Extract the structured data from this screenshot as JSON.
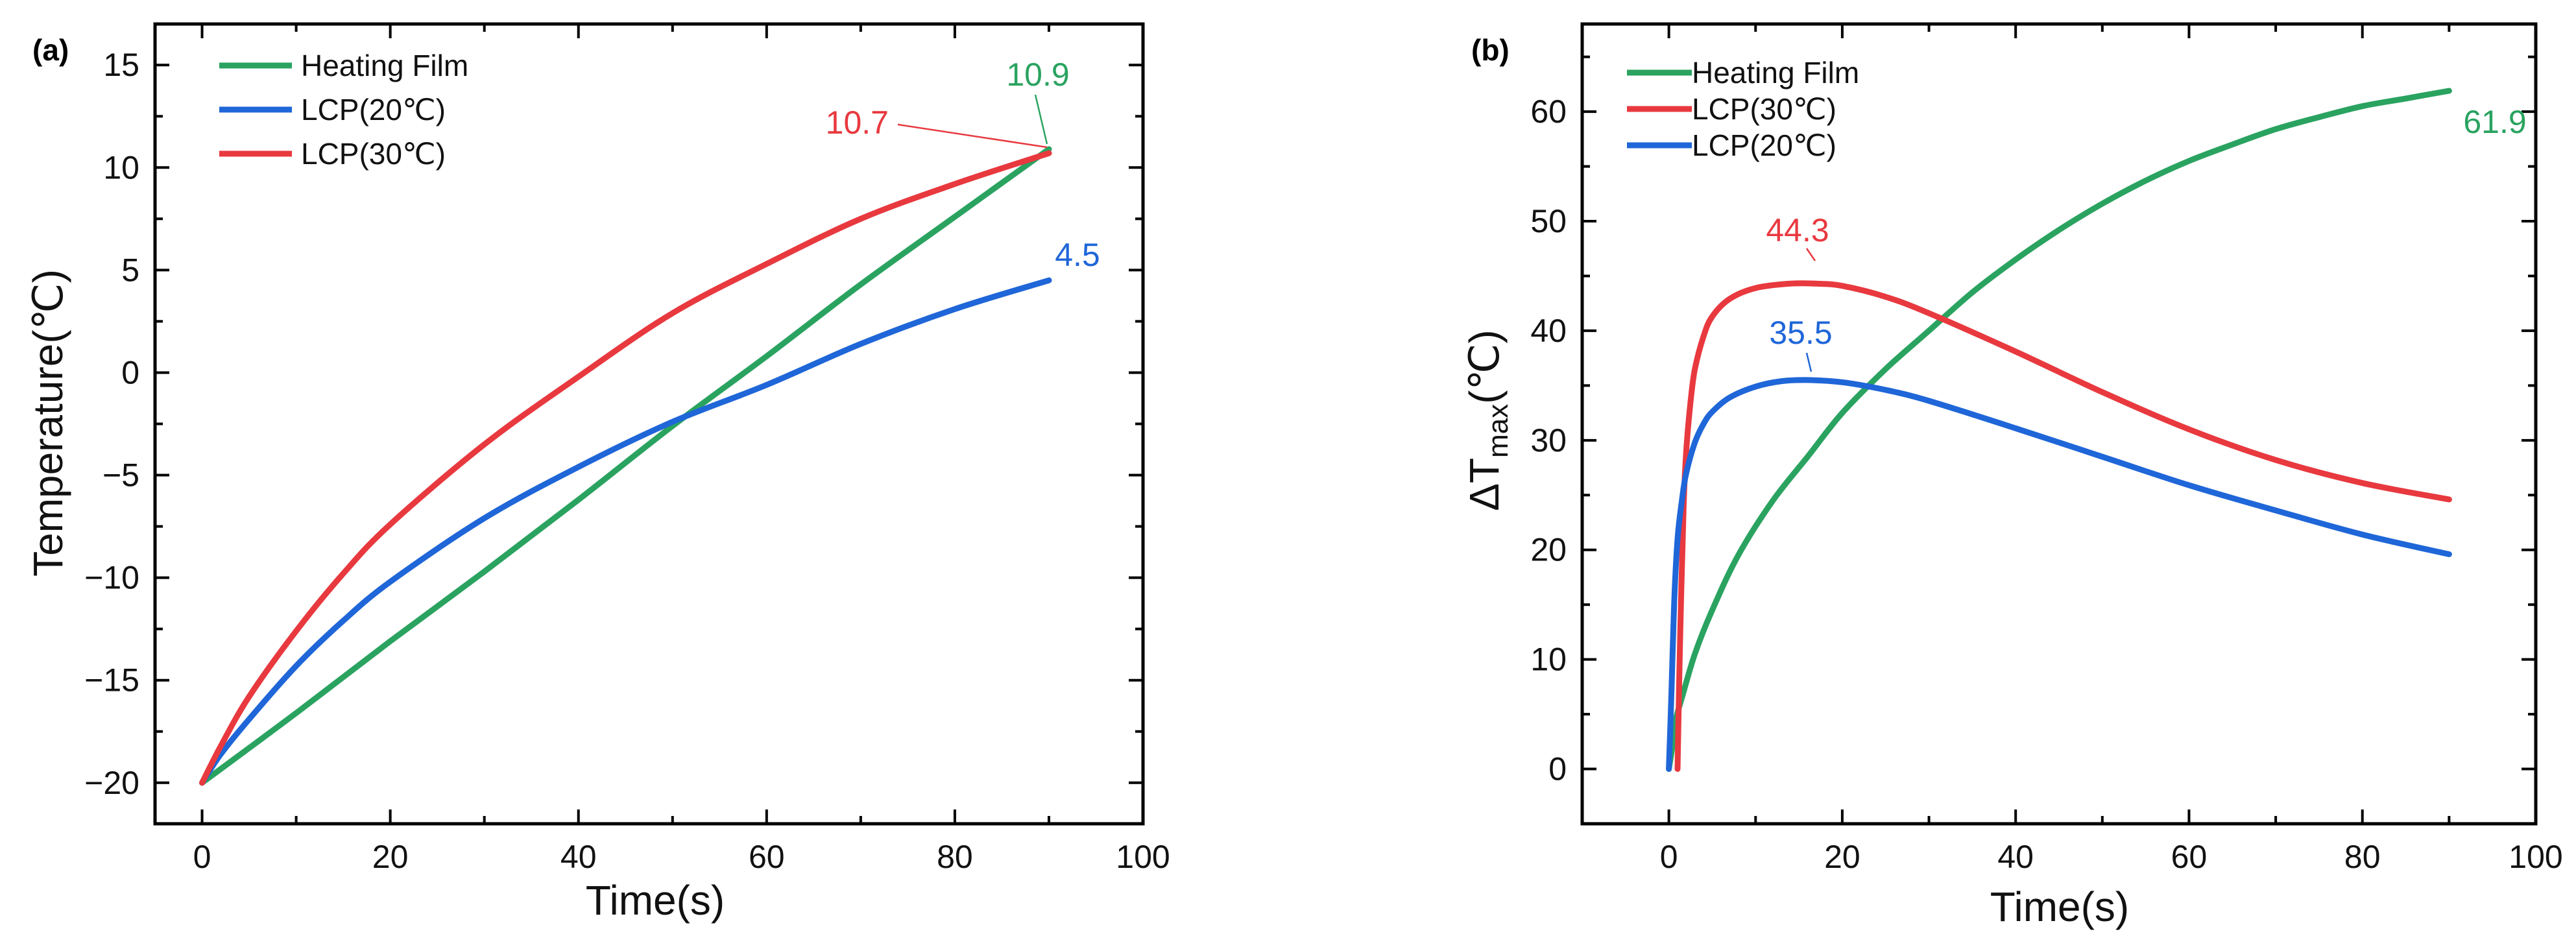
{
  "chart_data": [
    {
      "type": "line",
      "panel_label": "(a)",
      "xlabel": "Time(s)",
      "ylabel": "Temperature(℃)",
      "xlim": [
        -5,
        100
      ],
      "ylim": [
        -22,
        17
      ],
      "xticks": [
        0,
        20,
        40,
        60,
        80,
        100
      ],
      "yticks": [
        -20,
        -15,
        -10,
        -5,
        0,
        5,
        10,
        15
      ],
      "series": [
        {
          "name": "Heating Film",
          "color": "#2aa360",
          "x": [
            0,
            10,
            20,
            30,
            40,
            50,
            60,
            70,
            80,
            90
          ],
          "y": [
            -20,
            -16.6,
            -13.1,
            -9.7,
            -6.2,
            -2.6,
            0.8,
            4.3,
            7.6,
            10.9
          ]
        },
        {
          "name": "LCP(20℃)",
          "color": "#1f66d8",
          "x": [
            0,
            2,
            5,
            10,
            15,
            20,
            30,
            40,
            50,
            60,
            70,
            80,
            90
          ],
          "y": [
            -20,
            -18.6,
            -16.9,
            -14.3,
            -12.1,
            -10.2,
            -7.1,
            -4.6,
            -2.4,
            -0.6,
            1.4,
            3.1,
            4.5
          ]
        },
        {
          "name": "LCP(30℃)",
          "color": "#e8393f",
          "x": [
            0,
            2,
            5,
            10,
            15,
            20,
            30,
            40,
            50,
            60,
            70,
            80,
            90
          ],
          "y": [
            -20,
            -18.2,
            -15.8,
            -12.6,
            -9.8,
            -7.4,
            -3.5,
            -0.2,
            2.9,
            5.3,
            7.5,
            9.2,
            10.7
          ]
        }
      ],
      "annotations": [
        {
          "text": "10.9",
          "series": "Heating Film",
          "x": 90,
          "y": 10.9
        },
        {
          "text": "10.7",
          "series": "LCP(30℃)",
          "x": 90,
          "y": 10.7
        },
        {
          "text": "4.5",
          "series": "LCP(20℃)",
          "x": 90,
          "y": 4.5
        }
      ]
    },
    {
      "type": "line",
      "panel_label": "(b)",
      "xlabel": "Time(s)",
      "ylabel_main": "ΔT",
      "ylabel_sub": "max",
      "ylabel_unit": "(℃)",
      "xlim": [
        -10,
        100
      ],
      "ylim": [
        -5,
        68
      ],
      "xticks": [
        0,
        20,
        40,
        60,
        80,
        100
      ],
      "yticks": [
        0,
        10,
        20,
        30,
        40,
        50,
        60
      ],
      "series": [
        {
          "name": "Heating Film",
          "color": "#2aa360",
          "x": [
            0,
            0.4,
            0.8,
            1.5,
            3,
            5,
            8,
            12,
            16,
            20,
            25,
            30,
            35,
            40,
            45,
            50,
            55,
            60,
            65,
            70,
            75,
            80,
            85,
            90
          ],
          "y": [
            0,
            2,
            4.5,
            6.5,
            10.5,
            14.5,
            19.5,
            24.5,
            28.5,
            32.5,
            36.5,
            40,
            43.5,
            46.5,
            49.2,
            51.6,
            53.7,
            55.5,
            57,
            58.4,
            59.5,
            60.5,
            61.2,
            61.9
          ]
        },
        {
          "name": "LCP(30℃)",
          "color": "#e8393f",
          "x": [
            1,
            1.3,
            1.7,
            2,
            2.5,
            3,
            4,
            5,
            7,
            10,
            14,
            17,
            20,
            25,
            30,
            40,
            50,
            60,
            70,
            80,
            90
          ],
          "y": [
            0,
            12,
            24,
            29,
            33.5,
            36.5,
            39.5,
            41.3,
            42.9,
            43.9,
            44.3,
            44.3,
            44.1,
            43.1,
            41.6,
            38.1,
            34.4,
            31,
            28.2,
            26.1,
            24.6
          ]
        },
        {
          "name": "LCP(20℃)",
          "color": "#1f66d8",
          "x": [
            0,
            0.3,
            0.6,
            1,
            1.5,
            2,
            3,
            4,
            5,
            7,
            10,
            13,
            16,
            20,
            25,
            30,
            40,
            50,
            60,
            70,
            80,
            90
          ],
          "y": [
            0,
            7,
            15,
            21,
            24.5,
            27,
            29.8,
            31.5,
            32.6,
            33.9,
            34.9,
            35.4,
            35.5,
            35.3,
            34.6,
            33.6,
            31.1,
            28.5,
            25.9,
            23.6,
            21.4,
            19.6
          ]
        }
      ],
      "annotations": [
        {
          "text": "44.3",
          "series": "LCP(30℃)",
          "x": 17,
          "y": 44.3
        },
        {
          "text": "35.5",
          "series": "LCP(20℃)",
          "x": 16,
          "y": 35.5
        },
        {
          "text": "61.9",
          "series": "Heating Film",
          "x": 90,
          "y": 61.9
        }
      ]
    }
  ]
}
